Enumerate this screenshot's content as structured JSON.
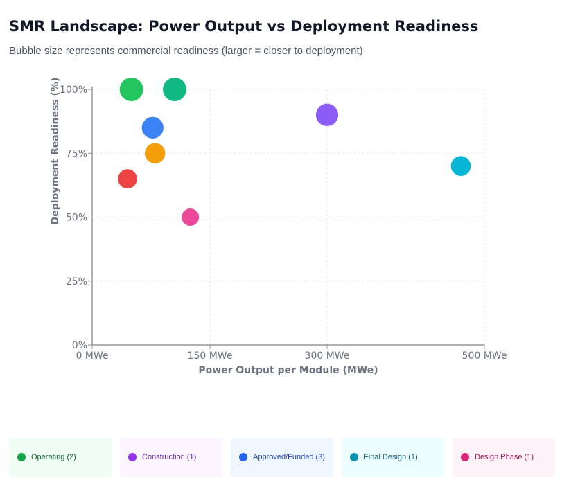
{
  "chart_data": {
    "type": "scatter",
    "title": "SMR Landscape: Power Output vs Deployment Readiness",
    "subtitle": "Bubble size represents commercial readiness (larger = closer to deployment)",
    "xlabel": "Power Output per Module (MWe)",
    "ylabel": "Deployment Readiness (%)",
    "xticks": [
      {
        "value": 0,
        "label": "0 MWe"
      },
      {
        "value": 150,
        "label": "150 MWe"
      },
      {
        "value": 300,
        "label": "300 MWe"
      },
      {
        "value": 500,
        "label": "500 MWe"
      }
    ],
    "yticks": [
      {
        "value": 0,
        "label": "0%"
      },
      {
        "value": 25,
        "label": "25%"
      },
      {
        "value": 50,
        "label": "50%"
      },
      {
        "value": 75,
        "label": "75%"
      },
      {
        "value": 100,
        "label": "100%"
      }
    ],
    "ylim": [
      0,
      100
    ],
    "xlim": [
      0,
      500
    ],
    "grid": true,
    "points": [
      {
        "x": 50,
        "y": 100,
        "color": "#22c55e"
      },
      {
        "x": 105,
        "y": 100,
        "color": "#10b981"
      },
      {
        "x": 77,
        "y": 85,
        "color": "#3b82f6"
      },
      {
        "x": 80,
        "y": 75,
        "color": "#f59e0b"
      },
      {
        "x": 45,
        "y": 65,
        "color": "#ef4444"
      },
      {
        "x": 125,
        "y": 50,
        "color": "#ec4899"
      },
      {
        "x": 300,
        "y": 90,
        "color": "#8b5cf6"
      },
      {
        "x": 470,
        "y": 70,
        "color": "#06b6d4"
      }
    ]
  },
  "legend": [
    {
      "label": "Operating (2)",
      "color": "#16a34a",
      "bg": "#f0fdf4",
      "text": "#166534"
    },
    {
      "label": "Construction (1)",
      "color": "#9333ea",
      "bg": "#faf5ff",
      "text": "#6b21a8"
    },
    {
      "label": "Approved/Funded (3)",
      "color": "#2563eb",
      "bg": "#eff6ff",
      "text": "#1e40af"
    },
    {
      "label": "Final Design (1)",
      "color": "#0891b2",
      "bg": "#ecfeff",
      "text": "#155e75"
    },
    {
      "label": "Design Phase (1)",
      "color": "#db2777",
      "bg": "#fdf2f8",
      "text": "#9d174d"
    }
  ]
}
